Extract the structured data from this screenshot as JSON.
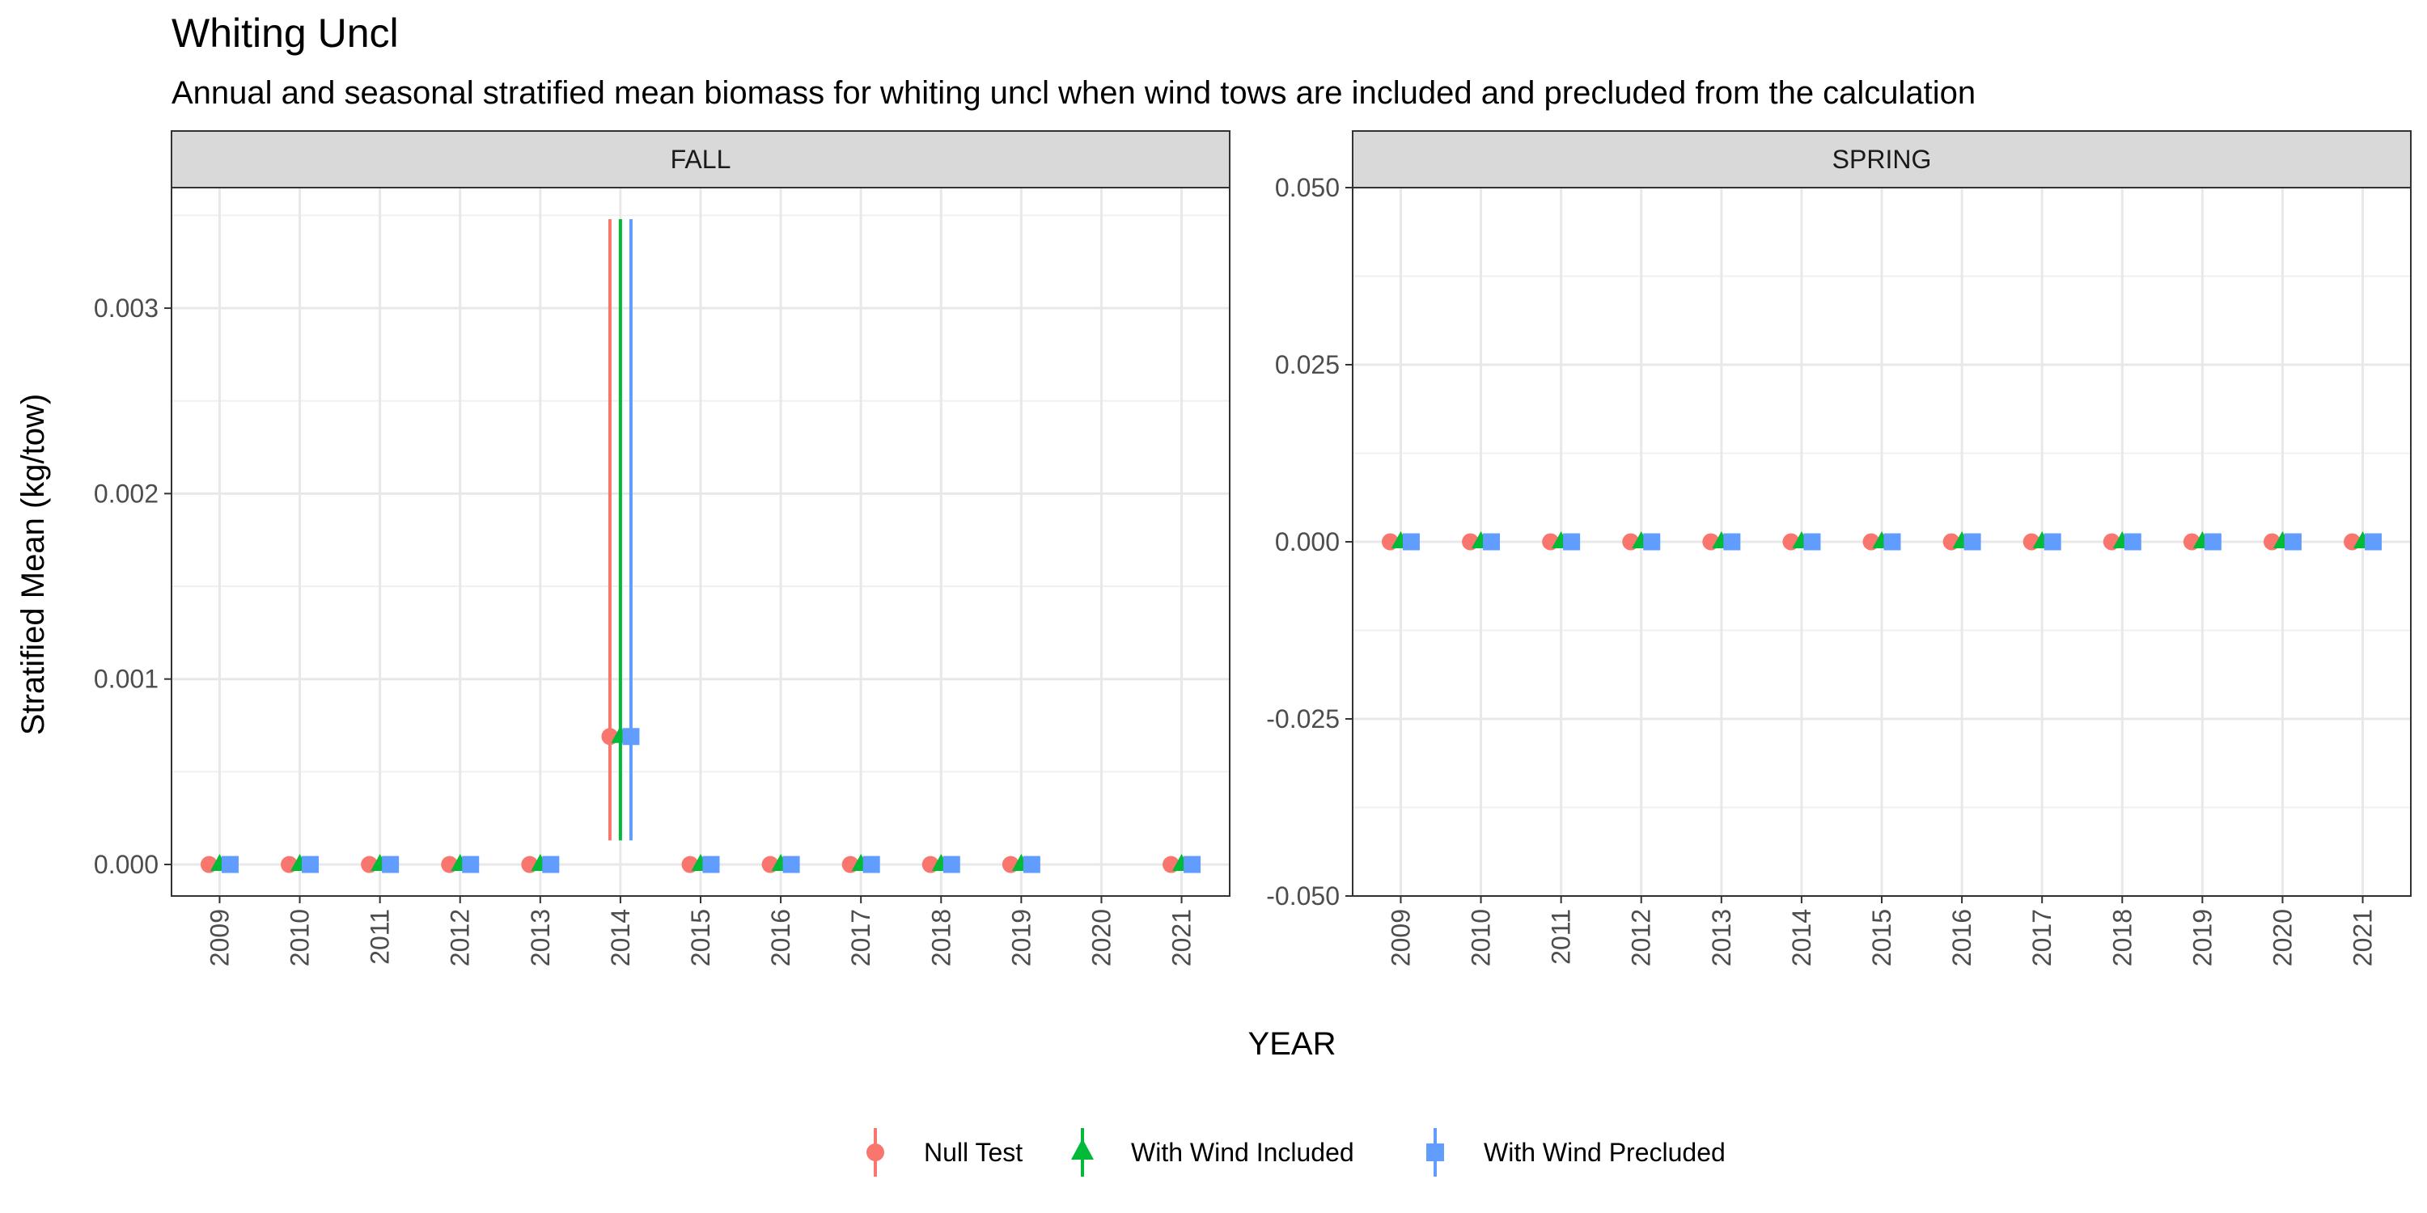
{
  "title": "Whiting Uncl",
  "subtitle": "Annual and seasonal stratified mean biomass for whiting uncl when wind tows are included and precluded from the calculation",
  "xlabel": "YEAR",
  "ylabel": "Stratified Mean (kg/tow)",
  "legend": {
    "position": "bottom",
    "entries": [
      {
        "label": "Null Test",
        "shape": "circle",
        "color": "#F8766D"
      },
      {
        "label": "With Wind Included",
        "shape": "triangle",
        "color": "#00BA38"
      },
      {
        "label": "With Wind Precluded",
        "shape": "square",
        "color": "#619CFF"
      }
    ]
  },
  "chart_data": [
    {
      "type": "scatter",
      "panel": "FALL",
      "ylim": [
        -0.00017,
        0.00365
      ],
      "y_ticks": [
        0.0,
        0.001,
        0.002,
        0.003
      ],
      "y_tick_labels": [
        "0.000",
        "0.001",
        "0.002",
        "0.003"
      ],
      "categories": [
        "2009",
        "2010",
        "2011",
        "2012",
        "2013",
        "2014",
        "2015",
        "2016",
        "2017",
        "2018",
        "2019",
        "2020",
        "2021"
      ],
      "series": [
        {
          "name": "Null Test",
          "color": "#F8766D",
          "shape": "circle",
          "values": [
            0,
            0,
            0,
            0,
            0,
            0.00069,
            0,
            0,
            0,
            0,
            0,
            null,
            0
          ],
          "error": [
            null,
            null,
            null,
            null,
            null,
            [
              0.00013,
              0.00348
            ],
            null,
            null,
            null,
            null,
            null,
            null,
            null
          ]
        },
        {
          "name": "With Wind Included",
          "color": "#00BA38",
          "shape": "triangle",
          "values": [
            0,
            0,
            0,
            0,
            0,
            0.00069,
            0,
            0,
            0,
            0,
            0,
            null,
            0
          ],
          "error": [
            null,
            null,
            null,
            null,
            null,
            [
              0.00013,
              0.00348
            ],
            null,
            null,
            null,
            null,
            null,
            null,
            null
          ]
        },
        {
          "name": "With Wind Precluded",
          "color": "#619CFF",
          "shape": "square",
          "values": [
            0,
            0,
            0,
            0,
            0,
            0.00069,
            0,
            0,
            0,
            0,
            0,
            null,
            0
          ],
          "error": [
            null,
            null,
            null,
            null,
            null,
            [
              0.00013,
              0.00348
            ],
            null,
            null,
            null,
            null,
            null,
            null,
            null
          ]
        }
      ]
    },
    {
      "type": "scatter",
      "panel": "SPRING",
      "ylim": [
        -0.05,
        0.05
      ],
      "y_ticks": [
        -0.05,
        -0.025,
        0.0,
        0.025,
        0.05
      ],
      "y_tick_labels": [
        "-0.050",
        "-0.025",
        "0.000",
        "0.025",
        "0.050"
      ],
      "categories": [
        "2009",
        "2010",
        "2011",
        "2012",
        "2013",
        "2014",
        "2015",
        "2016",
        "2017",
        "2018",
        "2019",
        "2020",
        "2021"
      ],
      "series": [
        {
          "name": "Null Test",
          "color": "#F8766D",
          "shape": "circle",
          "values": [
            0,
            0,
            0,
            0,
            0,
            0,
            0,
            0,
            0,
            0,
            0,
            0,
            0
          ]
        },
        {
          "name": "With Wind Included",
          "color": "#00BA38",
          "shape": "triangle",
          "values": [
            0,
            0,
            0,
            0,
            0,
            0,
            0,
            0,
            0,
            0,
            0,
            0,
            0
          ]
        },
        {
          "name": "With Wind Precluded",
          "color": "#619CFF",
          "shape": "square",
          "values": [
            0,
            0,
            0,
            0,
            0,
            0,
            0,
            0,
            0,
            0,
            0,
            0,
            0
          ]
        }
      ]
    }
  ]
}
